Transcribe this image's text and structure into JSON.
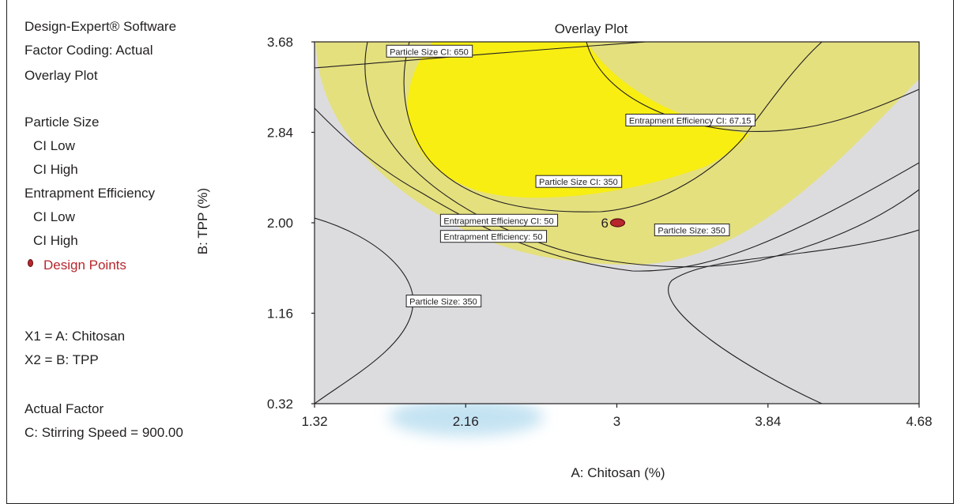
{
  "sidebar": {
    "software": "Design-Expert® Software",
    "coding": "Factor Coding: Actual",
    "plot_kind": "Overlay Plot",
    "response1": "Particle Size",
    "response1_low": "CI Low",
    "response1_high": "CI High",
    "response2": "Entrapment Efficiency",
    "response2_low": "CI Low",
    "response2_high": "CI High",
    "design_points": "Design Points",
    "x1": "X1 = A: Chitosan",
    "x2": "X2 = B: TPP",
    "actual_factor_title": "Actual Factor",
    "actual_factor_value": "C: Stirring Speed = 900.00"
  },
  "colors": {
    "plot_bg": "#dcdcdf",
    "feasible_light": "#e4e07e",
    "feasible_bright": "#f8ee12",
    "design_point": "#b7272d",
    "contour": "#231f20"
  },
  "chart_data": {
    "type": "contour-overlay",
    "title": "Overlay Plot",
    "xlabel": "A: Chitosan (%)",
    "ylabel": "B: TPP (%)",
    "xlim": [
      1.32,
      4.68
    ],
    "ylim": [
      0.32,
      3.68
    ],
    "xticks": [
      "1.32",
      "2.16",
      "3",
      "3.84",
      "4.68"
    ],
    "yticks": [
      "0.32",
      "1.16",
      "2.00",
      "2.84",
      "3.68"
    ],
    "contour_labels": [
      {
        "text": "Particle Size CI:  650",
        "x": 1.72,
        "y": 3.59
      },
      {
        "text": "Entrapment Efficiency CI:  67.15",
        "x": 3.05,
        "y": 2.95
      },
      {
        "text": "Particle Size CI:  350",
        "x": 2.55,
        "y": 2.38
      },
      {
        "text": "Entrapment Efficiency CI:  50",
        "x": 2.02,
        "y": 2.02
      },
      {
        "text": "Entrapment Efficiency: 50",
        "x": 2.02,
        "y": 1.87
      },
      {
        "text": "Particle Size: 350",
        "x": 3.21,
        "y": 1.93
      },
      {
        "text": "Particle Size: 350",
        "x": 1.83,
        "y": 1.27
      }
    ],
    "design_points": [
      {
        "x": 3.0,
        "y": 2.0,
        "label": "6"
      }
    ]
  }
}
